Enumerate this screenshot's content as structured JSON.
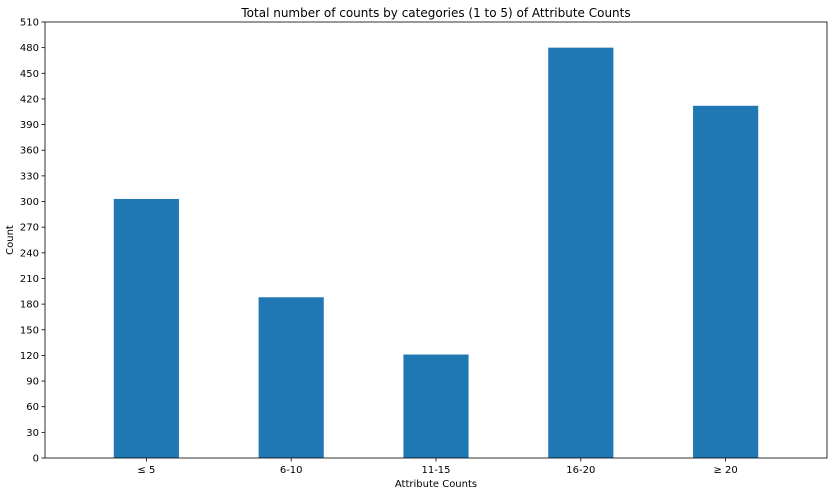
{
  "chart_data": {
    "type": "bar",
    "title": "Total number of counts by categories (1 to 5) of Attribute Counts",
    "xlabel": "Attribute Counts",
    "ylabel": "Count",
    "categories": [
      "≤ 5",
      "6-10",
      "11-15",
      "16-20",
      "≥ 20"
    ],
    "values": [
      303,
      188,
      121,
      480,
      412
    ],
    "ylim": [
      0,
      510
    ],
    "yticks": [
      0,
      30,
      60,
      90,
      120,
      150,
      180,
      210,
      240,
      270,
      300,
      330,
      360,
      390,
      420,
      450,
      480,
      510
    ],
    "grid": false,
    "bar_color": "#1f77b4"
  }
}
